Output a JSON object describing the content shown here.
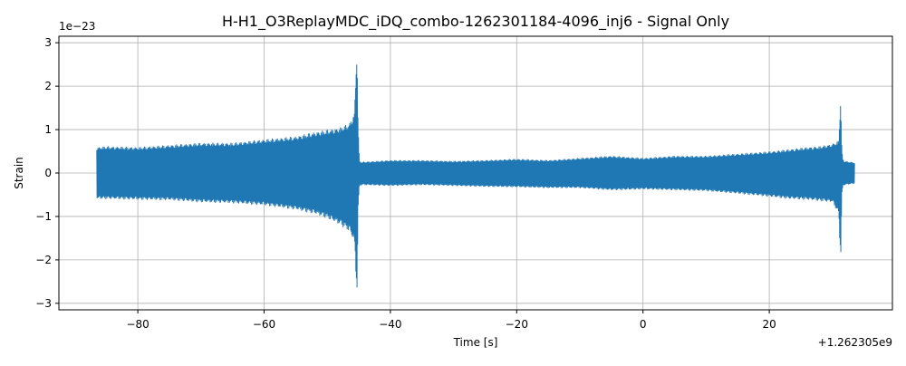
{
  "chart_data": {
    "type": "line",
    "title": "H-H1_O3ReplayMDC_iDQ_combo-1262301184-4096_inj6 - Signal Only",
    "xlabel": "Time [s]",
    "ylabel": "Strain",
    "x_offset_label": "+1.262305e9",
    "y_scale_label": "1e−23",
    "xlim": [
      -92.5,
      39.5
    ],
    "ylim": [
      -3.15,
      3.15
    ],
    "x_ticks": [
      -80,
      -60,
      -40,
      -20,
      0,
      20
    ],
    "x_tick_labels": [
      "−80",
      "−60",
      "−40",
      "−20",
      "0",
      "20"
    ],
    "y_ticks": [
      -3,
      -2,
      -1,
      0,
      1,
      2,
      3
    ],
    "y_tick_labels": [
      "−3",
      "−2",
      "−1",
      "0",
      "1",
      "2",
      "3"
    ],
    "grid": true,
    "series_color": "#1f77b4",
    "envelope": {
      "x": [
        -86.5,
        -85,
        -80,
        -75,
        -70,
        -65,
        -60,
        -55,
        -52,
        -50,
        -48,
        -46.5,
        -45.7,
        -45.3,
        -45.1,
        -44.9,
        -44.5,
        -40,
        -35,
        -30,
        -25,
        -20,
        -15,
        -10,
        -5,
        0,
        5,
        10,
        15,
        20,
        23,
        26,
        28,
        30,
        31,
        31.3,
        31.5,
        31.7,
        32,
        33.5
      ],
      "upper": [
        0.6,
        0.62,
        0.6,
        0.65,
        0.7,
        0.7,
        0.78,
        0.85,
        0.95,
        1.0,
        1.05,
        1.15,
        1.4,
        2.95,
        1.0,
        0.28,
        0.26,
        0.3,
        0.3,
        0.28,
        0.3,
        0.33,
        0.3,
        0.35,
        0.4,
        0.35,
        0.4,
        0.4,
        0.45,
        0.5,
        0.55,
        0.6,
        0.62,
        0.68,
        0.75,
        1.75,
        0.5,
        0.3,
        0.28,
        0.25
      ],
      "lower": [
        -0.6,
        -0.6,
        -0.62,
        -0.63,
        -0.68,
        -0.7,
        -0.75,
        -0.85,
        -0.95,
        -1.05,
        -1.2,
        -1.35,
        -1.6,
        -2.85,
        -0.8,
        -0.3,
        -0.28,
        -0.3,
        -0.28,
        -0.3,
        -0.32,
        -0.33,
        -0.35,
        -0.35,
        -0.4,
        -0.38,
        -0.4,
        -0.42,
        -0.48,
        -0.55,
        -0.6,
        -0.62,
        -0.65,
        -0.68,
        -0.95,
        -2.1,
        -0.5,
        -0.3,
        -0.28,
        -0.25
      ]
    }
  }
}
